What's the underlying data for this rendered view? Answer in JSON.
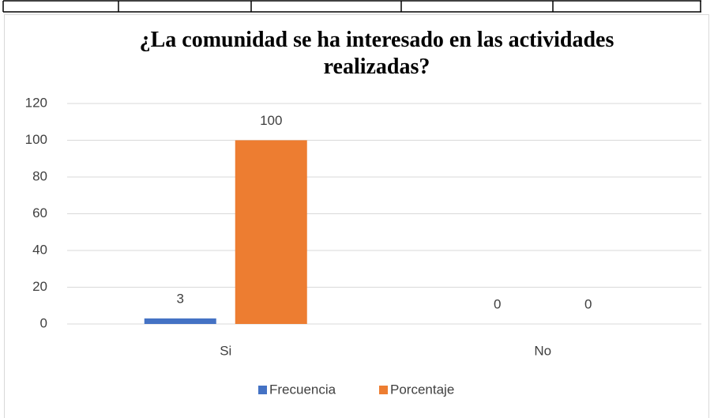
{
  "chart_data": {
    "type": "bar",
    "title": "¿La comunidad se ha interesado en las actividades realizadas?",
    "categories": [
      "Si",
      "No"
    ],
    "series": [
      {
        "name": "Frecuencia",
        "color": "#4472c4",
        "values": [
          3,
          0
        ]
      },
      {
        "name": "Porcentaje",
        "color": "#ed7d31",
        "values": [
          100,
          0
        ]
      }
    ],
    "ylim": [
      0,
      120
    ],
    "yticks": [
      0,
      20,
      40,
      60,
      80,
      100,
      120
    ],
    "grid": true,
    "legend": "bottom"
  }
}
